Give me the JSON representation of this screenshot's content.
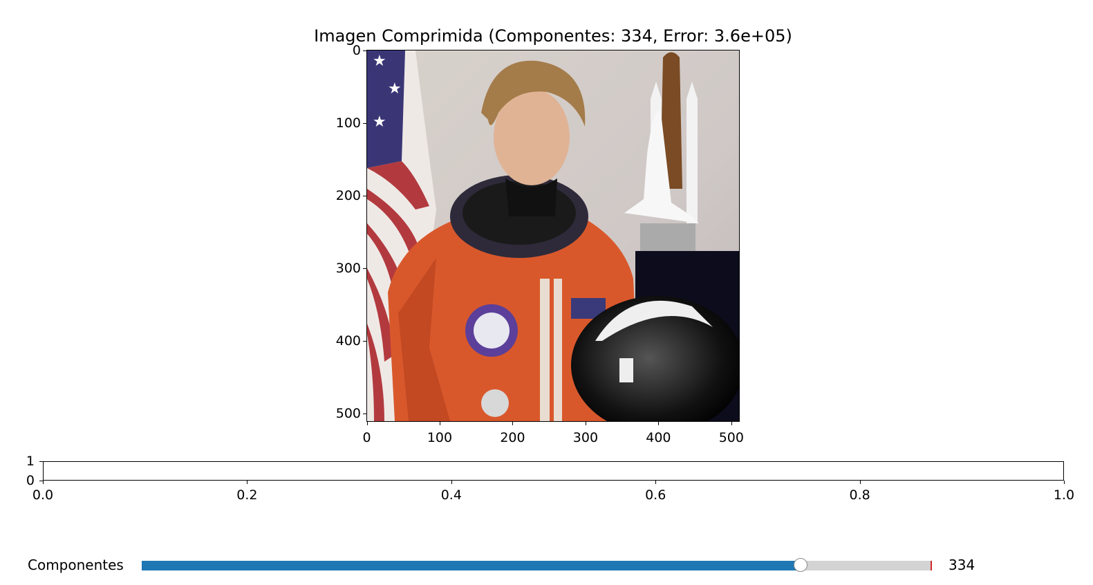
{
  "figure": {
    "title": "Imagen Comprimida (Componentes: 334, Error: 3.6e+05)",
    "image_description_name": "astronaut-photo",
    "image_axis": {
      "x_ticks": [
        "0",
        "100",
        "200",
        "300",
        "400",
        "500"
      ],
      "y_ticks": [
        "0",
        "100",
        "200",
        "300",
        "400",
        "500"
      ]
    },
    "empty_axis": {
      "x_ticks": [
        "0.0",
        "0.2",
        "0.4",
        "0.6",
        "0.8",
        "1.0"
      ],
      "y_ticks": [
        "1",
        "0"
      ]
    }
  },
  "slider": {
    "label": "Componentes",
    "value_text": "334",
    "value": 334,
    "min": 1,
    "max": 400,
    "fraction": 0.834,
    "init_fraction": 0.998,
    "fill_color": "#1f77b4",
    "track_color": "#d3d3d3",
    "init_marker_color": "#d62728"
  }
}
